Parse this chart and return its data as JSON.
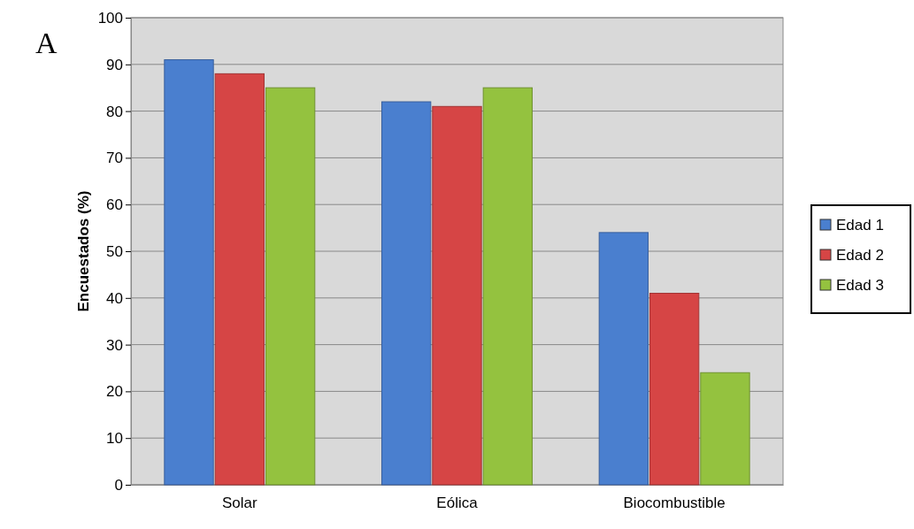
{
  "chart_data": {
    "type": "bar",
    "ylabel": "Encuestados (%)",
    "annotations": [
      "A"
    ],
    "categories": [
      "Solar",
      "Eólica",
      "Biocombustible"
    ],
    "series": [
      {
        "name": "Edad 1",
        "color": "#4a7fcf",
        "values": [
          91,
          82,
          54
        ]
      },
      {
        "name": "Edad 2",
        "color": "#d64545",
        "values": [
          88,
          81,
          41
        ]
      },
      {
        "name": "Edad 3",
        "color": "#94c23f",
        "values": [
          85,
          85,
          24
        ]
      }
    ],
    "ylim": [
      0,
      100
    ],
    "yticks": [
      0,
      10,
      20,
      30,
      40,
      50,
      60,
      70,
      80,
      90,
      100
    ],
    "grid": "y",
    "legend": "right"
  }
}
